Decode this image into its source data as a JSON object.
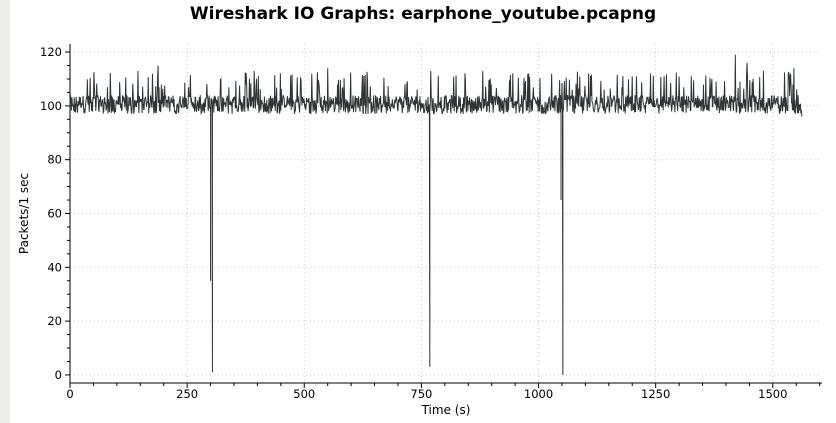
{
  "chart_data": {
    "type": "line",
    "title": "Wireshark IO Graphs: earphone_youtube.pcapng",
    "xlabel": "Time (s)",
    "ylabel": "Packets/1 sec",
    "xlim": [
      0,
      1605
    ],
    "ylim": [
      -3,
      123
    ],
    "xticks": [
      0,
      250,
      500,
      750,
      1000,
      1250,
      1500
    ],
    "yticks": [
      0,
      20,
      40,
      60,
      80,
      100,
      120
    ],
    "grid": true,
    "line_color": "#2f3535",
    "series": [
      {
        "baseline": 100,
        "x_start": 0,
        "x_end": 1562,
        "end_value": 96,
        "dips": [
          {
            "x": 300,
            "values": [
              98,
              35,
              96
            ]
          },
          {
            "x": 304,
            "values": [
              1,
              99
            ]
          },
          {
            "x": 768,
            "values": [
              3,
              29,
              98
            ]
          },
          {
            "x": 1048,
            "values": [
              98,
              65,
              99
            ]
          },
          {
            "x": 1052,
            "values": [
              0,
              98
            ]
          }
        ],
        "peaks": [
          {
            "x": 188,
            "value": 115
          },
          {
            "x": 322,
            "value": 110
          },
          {
            "x": 393,
            "value": 113
          },
          {
            "x": 550,
            "value": 114
          },
          {
            "x": 770,
            "value": 113
          },
          {
            "x": 1200,
            "value": 111
          },
          {
            "x": 1268,
            "value": 111
          },
          {
            "x": 1370,
            "value": 110
          },
          {
            "x": 1420,
            "value": 119
          },
          {
            "x": 1445,
            "value": 116
          },
          {
            "x": 1480,
            "value": 113
          },
          {
            "x": 1545,
            "value": 114
          }
        ]
      }
    ]
  }
}
